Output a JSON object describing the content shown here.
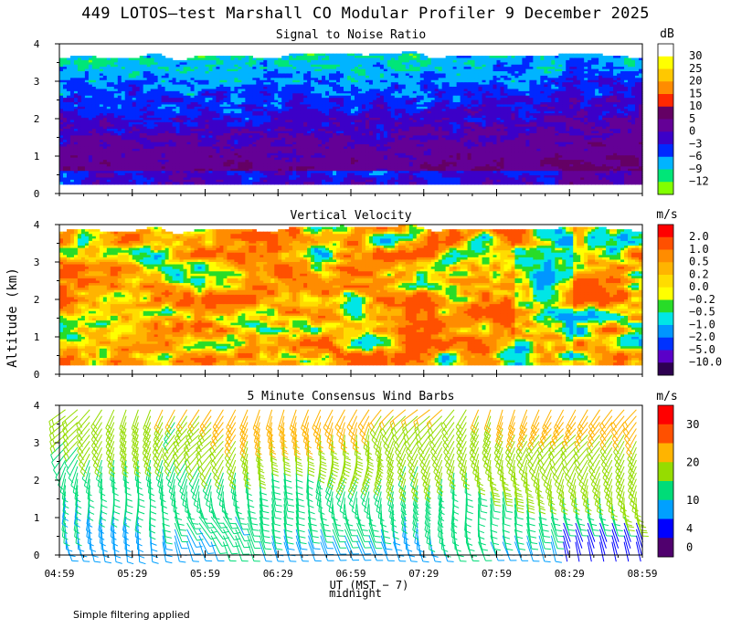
{
  "title": "449 LOTOS—test Marshall CO Modular Profiler  9 December 2025",
  "footnote": "Simple filtering applied",
  "chart_data": {
    "type": "heatmap",
    "y_axis": {
      "label": "Altitude (km)",
      "ticks": [
        0,
        1,
        2,
        3,
        4
      ],
      "range": [
        0,
        4
      ]
    },
    "x_axis": {
      "label": "UT  (MST − 7)",
      "sublabel": "midnight",
      "sublabel_at": "06:59",
      "ticks": [
        "04:59",
        "05:29",
        "05:59",
        "06:29",
        "06:59",
        "07:29",
        "07:59",
        "08:29",
        "08:59"
      ],
      "range_minutes": [
        0,
        240
      ]
    },
    "panels": [
      {
        "id": "snr",
        "title": "Signal to Noise Ratio",
        "kind": "contour",
        "units": "dB",
        "colorbar_labels": [
          "30",
          "25",
          "20",
          "15",
          "10",
          "5",
          "0",
          "−3",
          "−6",
          "−9",
          "−12"
        ],
        "colorbar_colors": [
          "#ffffff",
          "#ffff00",
          "#ffc800",
          "#ff8c00",
          "#ff2800",
          "#640064",
          "#640096",
          "#3c00c8",
          "#0028ff",
          "#00b4ff",
          "#00e678",
          "#82ff00"
        ],
        "data_top_km": 3.8,
        "data_bottom_km": 0.25
      },
      {
        "id": "vv",
        "title": "Vertical Velocity",
        "kind": "contour",
        "units": "m/s",
        "colorbar_labels": [
          "2.0",
          "1.0",
          "0.5",
          "0.2",
          "0.0",
          "−0.2",
          "−0.5",
          "−1.0",
          "−2.0",
          "−5.0",
          "−10.0"
        ],
        "colorbar_colors": [
          "#ff0000",
          "#ff5000",
          "#ff8c00",
          "#ffb400",
          "#ffdc00",
          "#ffff00",
          "#28dc28",
          "#00e6e6",
          "#0096ff",
          "#0032ff",
          "#5a00c8",
          "#2d0050"
        ],
        "data_top_km": 4.0,
        "data_bottom_km": 0.25
      },
      {
        "id": "wind",
        "title": "5 Minute Consensus Wind Barbs",
        "kind": "barbs",
        "units": "m/s",
        "colorbar_labels": [
          "30",
          "20",
          "10",
          "4",
          "0"
        ],
        "colorbar_colors": [
          "#ff0000",
          "#ff5000",
          "#ffb400",
          "#96dc00",
          "#00dc78",
          "#00a0ff",
          "#0000ff",
          "#50006e"
        ],
        "colorbar_edges": [
          35,
          30,
          25,
          20,
          15,
          10,
          4,
          2,
          0
        ],
        "data_top_km": 4.0,
        "data_bottom_km": 0.3
      }
    ]
  }
}
